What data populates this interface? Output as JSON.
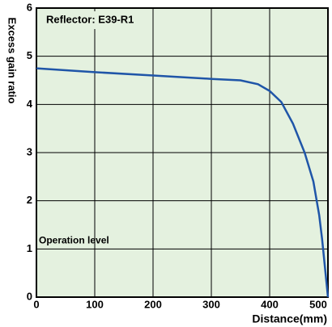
{
  "chart_data": {
    "type": "line",
    "x_label": "Distance(mm)",
    "y_label": "Excess gain ratio",
    "annotations": [
      "Reflector: E39-R1",
      "Operation level"
    ],
    "x": [
      0,
      100,
      200,
      300,
      350,
      380,
      400,
      420,
      440,
      460,
      475,
      485,
      490,
      495,
      500
    ],
    "series": [
      {
        "name": "Reflector: E39-R1",
        "color": "#1f55a8",
        "values": [
          4.75,
          4.67,
          4.6,
          4.53,
          4.5,
          4.42,
          4.28,
          4.05,
          3.6,
          3.0,
          2.4,
          1.7,
          1.2,
          0.6,
          0
        ]
      }
    ],
    "xlim": [
      0,
      500
    ],
    "xticks": [
      0,
      100,
      200,
      300,
      400,
      500
    ],
    "ylim": [
      0,
      6
    ],
    "yticks": [
      0,
      1,
      2,
      3,
      4,
      5,
      6
    ],
    "grid": true,
    "background": "#e4f1df"
  }
}
